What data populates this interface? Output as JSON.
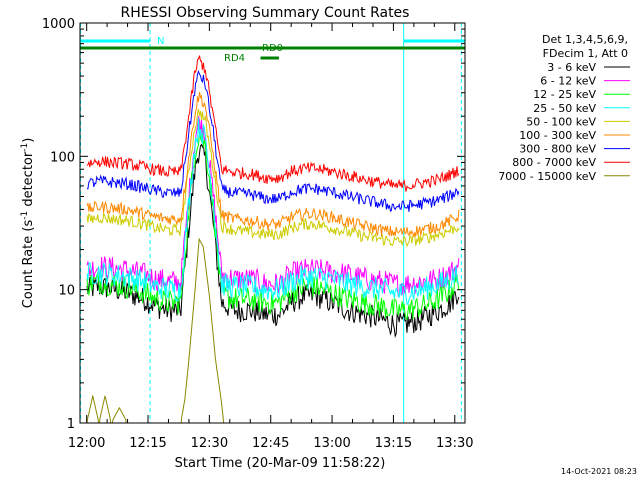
{
  "chart_data": {
    "type": "line",
    "title": "RHESSI Observing Summary Count Rates",
    "xlabel": "Start Time (20-Mar-09 11:58:22)",
    "ylabel": "Count Rate (s",
    "ylabel_sup": "-1",
    "ylabel_tail": " detector",
    "ylabel_tail_sup": "-1",
    "ylabel_close": ")",
    "x_ticks": [
      "12:00",
      "12:15",
      "12:30",
      "12:45",
      "13:00",
      "13:15",
      "13:30"
    ],
    "x_tick_minutes": [
      0,
      15,
      30,
      45,
      60,
      75,
      90
    ],
    "x_range_minutes": [
      -1.63,
      92.5
    ],
    "y_ticks": [
      "1",
      "10",
      "100",
      "1000"
    ],
    "y_tick_values": [
      1,
      10,
      100,
      1000
    ],
    "ylim": [
      1,
      1000
    ],
    "yscale": "log",
    "legend_placement": "right",
    "legend_header": [
      "Det 1,3,4,5,6,9,",
      "FDecim 1, Att 0"
    ],
    "series": [
      {
        "name": "3 - 6 keV",
        "color": "#000000",
        "x": [
          0,
          3,
          6,
          10,
          14,
          17,
          20,
          23,
          25,
          26.5,
          27.5,
          29,
          31,
          33,
          36,
          40,
          44,
          47,
          50,
          53,
          56,
          60,
          64,
          68,
          72,
          75,
          78,
          82,
          86,
          89,
          91
        ],
        "y": [
          10,
          10.5,
          10.2,
          9.5,
          8.5,
          7.5,
          7,
          7,
          30,
          80,
          115,
          95,
          30,
          8,
          7,
          7,
          6.5,
          6.5,
          8,
          9,
          9,
          8,
          7,
          6.5,
          6,
          5.5,
          5.5,
          6,
          7,
          8,
          10
        ]
      },
      {
        "name": "6 - 12 keV",
        "color": "#ff00ff",
        "x": [
          0,
          3,
          6,
          10,
          14,
          17,
          20,
          23,
          25,
          26.5,
          27.5,
          29,
          31,
          33,
          36,
          40,
          44,
          47,
          50,
          53,
          56,
          60,
          64,
          68,
          72,
          75,
          78,
          82,
          86,
          89,
          91
        ],
        "y": [
          14,
          15,
          14.5,
          14,
          13,
          12,
          11.5,
          11.5,
          50,
          140,
          185,
          150,
          50,
          13,
          12,
          12,
          11,
          11,
          13,
          14,
          14,
          13.5,
          13,
          12,
          11.5,
          11,
          11,
          11.5,
          12,
          13.5,
          15
        ]
      },
      {
        "name": "12 - 25 keV",
        "color": "#00ff00",
        "x": [
          0,
          3,
          6,
          10,
          14,
          17,
          20,
          23,
          25,
          26.5,
          27.5,
          29,
          31,
          33,
          36,
          40,
          44,
          47,
          50,
          53,
          56,
          60,
          64,
          68,
          72,
          75,
          78,
          82,
          86,
          89,
          91
        ],
        "y": [
          11,
          11.5,
          11,
          10.5,
          9.5,
          8.5,
          8,
          8,
          40,
          110,
          150,
          120,
          40,
          9,
          8.5,
          8.5,
          8,
          8,
          9.5,
          10.5,
          10.5,
          9.5,
          8.5,
          8,
          7.5,
          7,
          7,
          7.5,
          8.5,
          10,
          12
        ]
      },
      {
        "name": "25 - 50 keV",
        "color": "#00ffff",
        "x": [
          0,
          3,
          6,
          10,
          14,
          17,
          20,
          23,
          25,
          26.5,
          27.5,
          29,
          31,
          33,
          36,
          40,
          44,
          47,
          50,
          53,
          56,
          60,
          64,
          68,
          72,
          75,
          78,
          82,
          86,
          89,
          91
        ],
        "y": [
          13,
          13.5,
          13,
          12.5,
          11.5,
          10.5,
          10,
          10,
          45,
          125,
          170,
          135,
          45,
          11,
          10.5,
          10.5,
          10,
          10,
          11.5,
          12.5,
          12.5,
          12,
          11,
          10.5,
          10,
          9.5,
          9.5,
          10,
          11,
          12,
          13.5
        ]
      },
      {
        "name": "50 - 100 keV",
        "color": "#cccc00",
        "x": [
          0,
          3,
          6,
          10,
          14,
          17,
          20,
          23,
          25,
          26.5,
          27.5,
          29,
          31,
          33,
          36,
          40,
          44,
          47,
          50,
          53,
          56,
          60,
          64,
          68,
          72,
          75,
          78,
          82,
          86,
          89,
          91
        ],
        "y": [
          33,
          35,
          34,
          33,
          31,
          29,
          28,
          28,
          80,
          170,
          220,
          185,
          80,
          30,
          28,
          27,
          26,
          26,
          29,
          31,
          31,
          29,
          27,
          25,
          24,
          23,
          23,
          24,
          26,
          28,
          30
        ]
      },
      {
        "name": "100 - 300 keV",
        "color": "#ff8800",
        "x": [
          0,
          3,
          6,
          10,
          14,
          17,
          20,
          23,
          25,
          26.5,
          27.5,
          29,
          31,
          33,
          36,
          40,
          44,
          47,
          50,
          53,
          56,
          60,
          64,
          68,
          72,
          75,
          78,
          82,
          86,
          89,
          91
        ],
        "y": [
          40,
          42,
          41,
          40,
          37,
          35,
          34,
          34,
          100,
          220,
          290,
          240,
          100,
          36,
          34,
          33,
          31,
          31,
          35,
          37,
          37,
          35,
          32,
          30,
          28,
          27,
          27,
          28,
          30,
          33,
          36
        ]
      },
      {
        "name": "300 - 800 keV",
        "color": "#0000ff",
        "x": [
          0,
          3,
          6,
          10,
          14,
          17,
          20,
          23,
          25,
          26.5,
          27.5,
          29,
          31,
          33,
          36,
          40,
          44,
          47,
          50,
          53,
          56,
          60,
          64,
          68,
          72,
          75,
          78,
          82,
          86,
          89,
          91
        ],
        "y": [
          62,
          65,
          64,
          62,
          58,
          55,
          53,
          53,
          150,
          330,
          420,
          350,
          150,
          56,
          53,
          52,
          48,
          48,
          54,
          57,
          57,
          54,
          50,
          47,
          44,
          42,
          42,
          44,
          47,
          51,
          56
        ]
      },
      {
        "name": "800 - 7000 keV",
        "color": "#ff0000",
        "x": [
          0,
          3,
          6,
          10,
          14,
          17,
          20,
          23,
          25,
          26.5,
          27.5,
          29,
          31,
          33,
          36,
          40,
          44,
          47,
          50,
          53,
          56,
          60,
          64,
          68,
          72,
          75,
          78,
          82,
          86,
          89,
          91
        ],
        "y": [
          88,
          92,
          90,
          88,
          83,
          79,
          76,
          76,
          200,
          430,
          540,
          450,
          200,
          80,
          76,
          74,
          69,
          69,
          77,
          81,
          81,
          77,
          72,
          67,
          63,
          60,
          60,
          63,
          67,
          73,
          80
        ]
      },
      {
        "name": "7000 - 15000 keV",
        "color": "#888800",
        "x": [
          0,
          1.5,
          3,
          4.5,
          6,
          8,
          10,
          13,
          16,
          19,
          21.5,
          23,
          24,
          25,
          26.5,
          27.5,
          28.5,
          30,
          31.5,
          33,
          33.5
        ],
        "y": [
          1,
          1.6,
          1,
          1.6,
          1,
          1.3,
          1,
          1,
          1,
          1,
          1,
          1,
          1.5,
          3,
          10,
          24,
          21,
          9,
          3,
          1.4,
          1
        ]
      }
    ],
    "annotations": [
      {
        "text": "N",
        "color": "#00ffff"
      },
      {
        "text": "RD0",
        "color": "#008000"
      },
      {
        "text": "RD4",
        "color": "#008000"
      }
    ],
    "footer_date": "14-Oct-2021 08:23"
  }
}
